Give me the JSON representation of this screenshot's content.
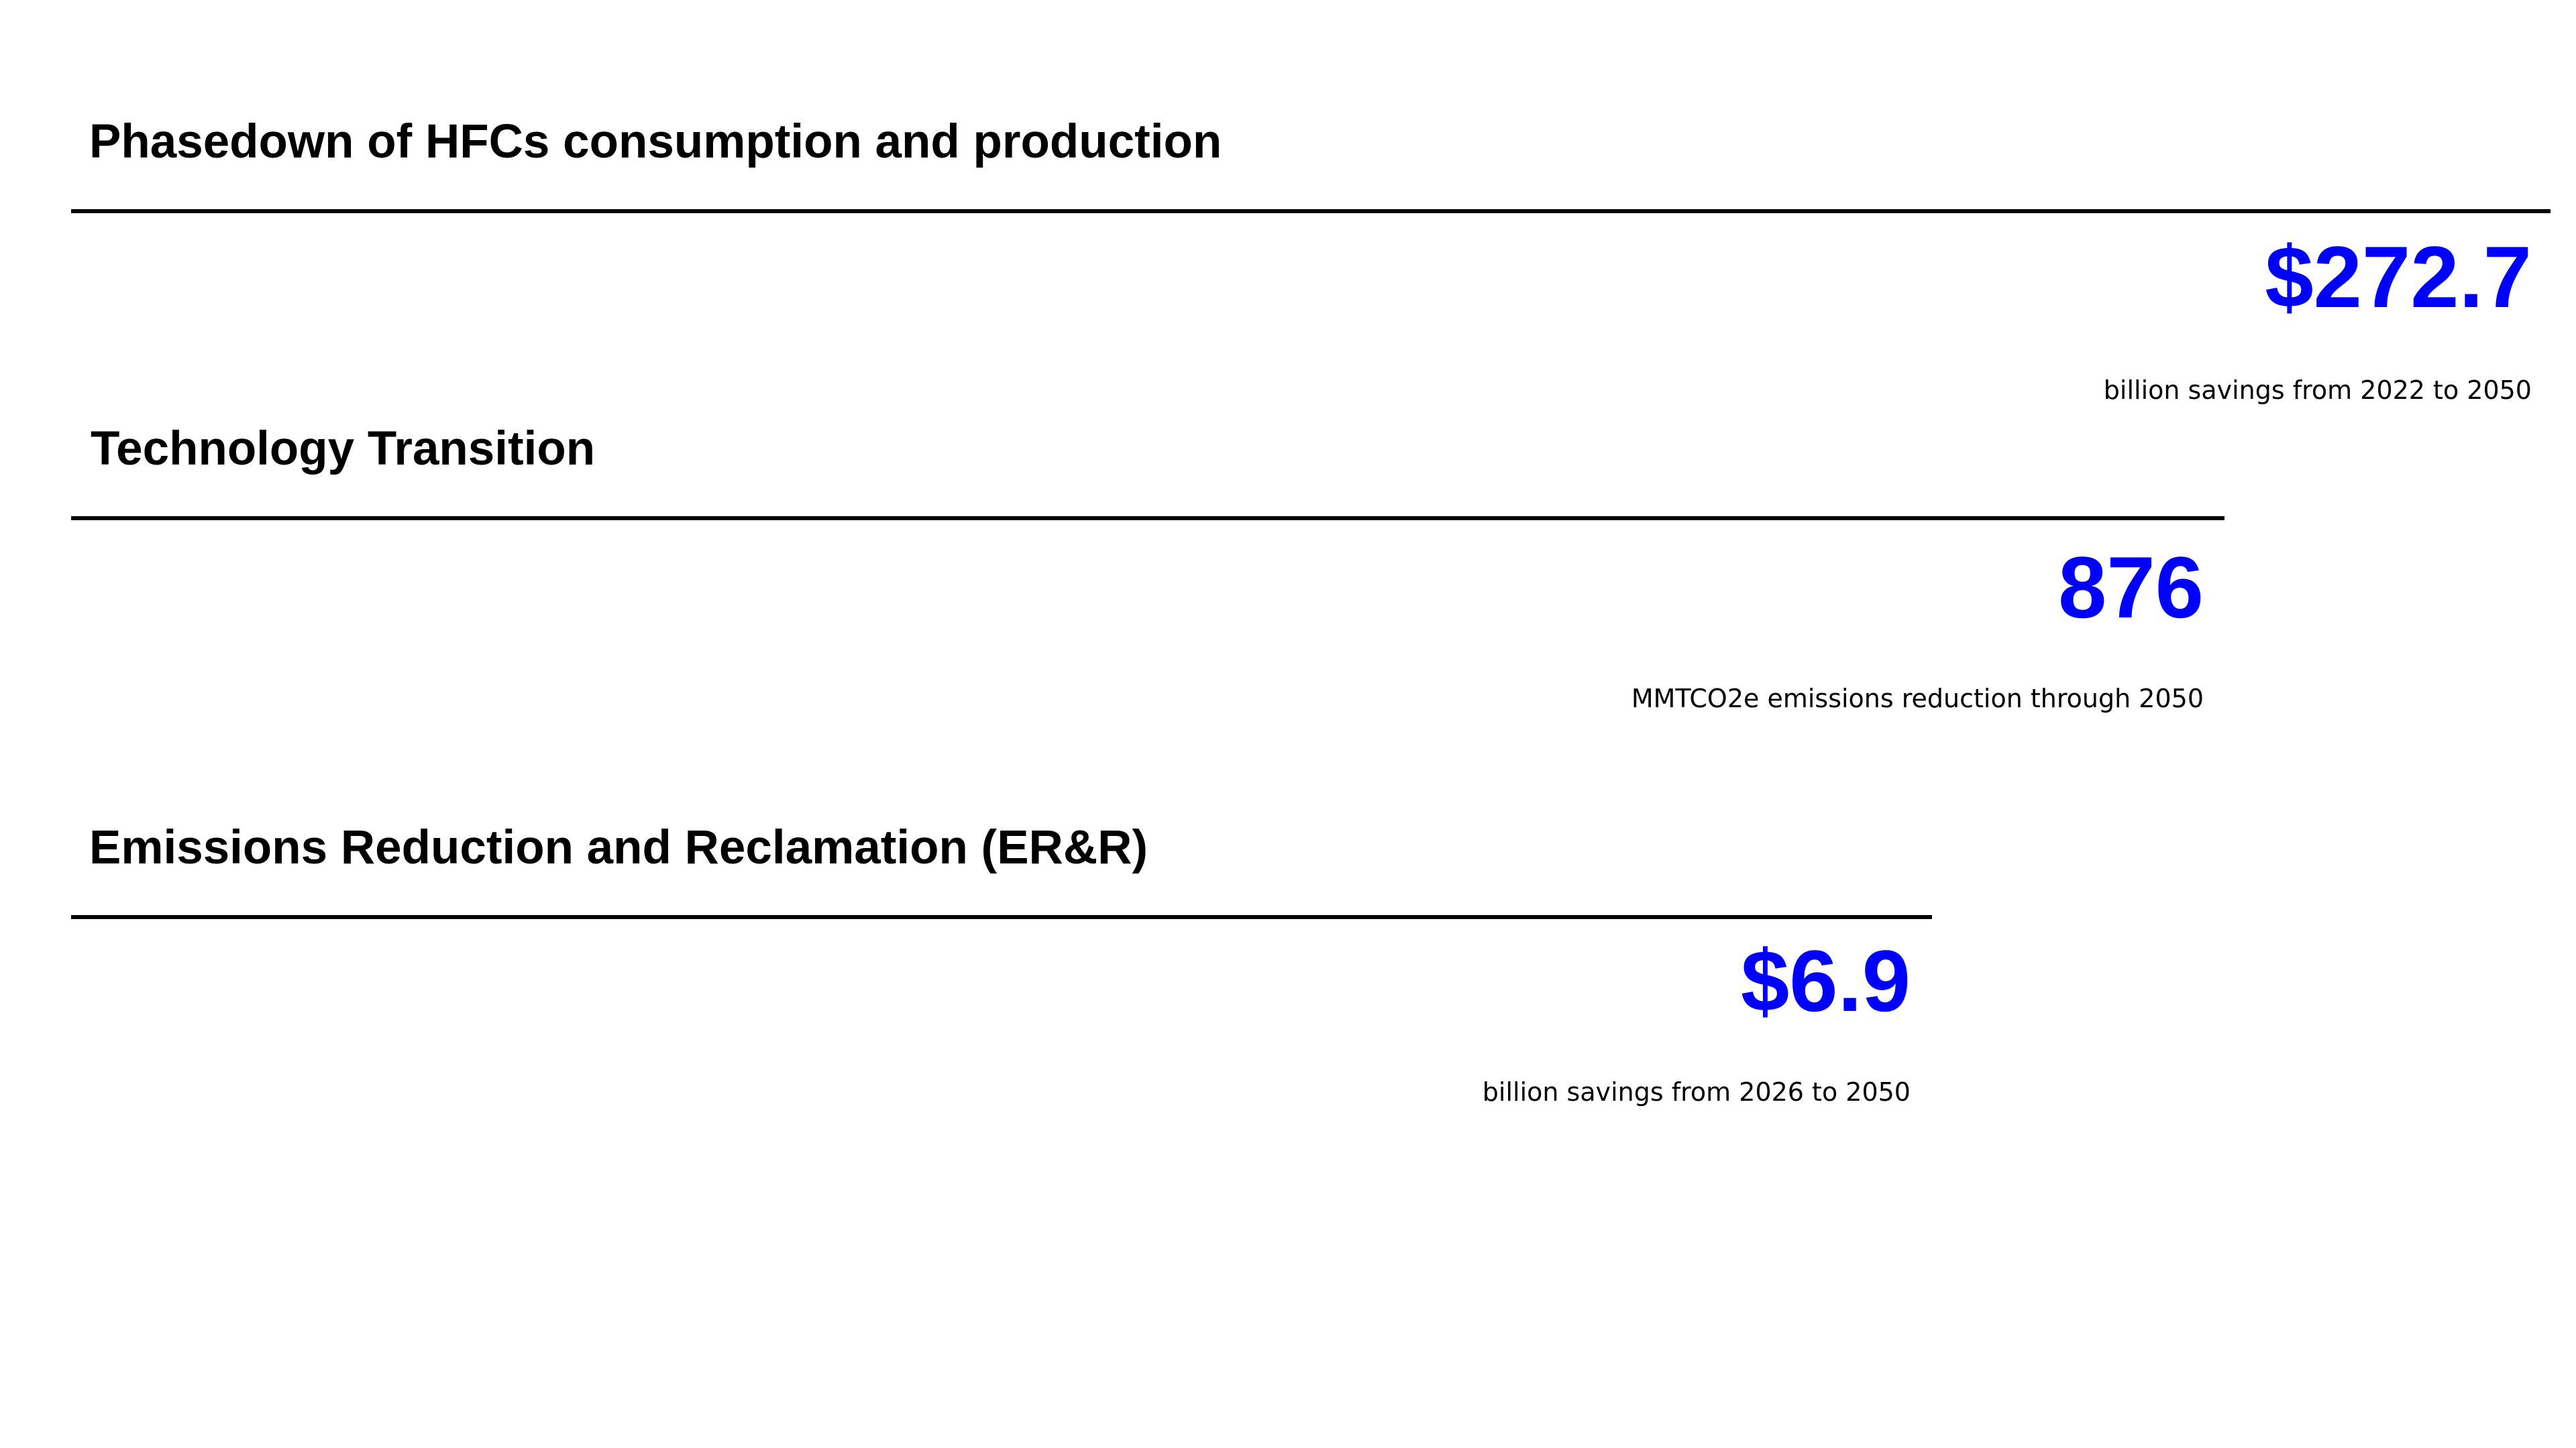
{
  "sections": [
    {
      "heading": "Phasedown of HFCs consumption and production",
      "value": "$272.7",
      "caption": "billion savings from 2022 to 2050"
    },
    {
      "heading": "Technology Transition",
      "value": "876",
      "caption": "MMTCO2e emissions reduction through 2050"
    },
    {
      "heading": "Emissions Reduction and Reclamation (ER&R)",
      "value": "$6.9",
      "caption": "billion savings from 2026 to 2050"
    }
  ],
  "colors": {
    "value_text": "#0000ff",
    "heading_text": "#000000",
    "rule": "#000000",
    "background": "#ffffff"
  }
}
